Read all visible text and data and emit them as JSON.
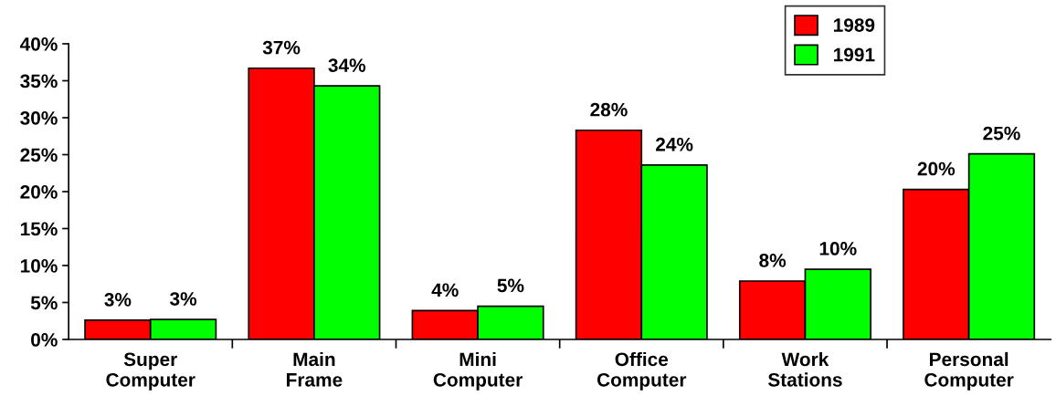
{
  "chart_data": {
    "type": "bar",
    "categories": [
      "Super\nComputer",
      "Main\nFrame",
      "Mini\nComputer",
      "Office\nComputer",
      "Work\nStations",
      "Personal\nComputer"
    ],
    "series": [
      {
        "name": "1989",
        "color": "#ff0000",
        "values": [
          2.6,
          36.7,
          3.9,
          28.3,
          7.9,
          20.3
        ],
        "value_labels": [
          "3%",
          "37%",
          "4%",
          "28%",
          "8%",
          "20%"
        ]
      },
      {
        "name": "1991",
        "color": "#00ff00",
        "values": [
          2.7,
          34.3,
          4.5,
          23.6,
          9.5,
          25.1
        ],
        "value_labels": [
          "3%",
          "34%",
          "5%",
          "24%",
          "10%",
          "25%"
        ]
      }
    ],
    "ylim": [
      0,
      40
    ],
    "yticks": [
      {
        "value": 0,
        "label": "0%"
      },
      {
        "value": 5,
        "label": "5%"
      },
      {
        "value": 10,
        "label": "10%"
      },
      {
        "value": 15,
        "label": "15%"
      },
      {
        "value": 20,
        "label": "20%"
      },
      {
        "value": 25,
        "label": "25%"
      },
      {
        "value": 30,
        "label": "30%"
      },
      {
        "value": 35,
        "label": "35%"
      },
      {
        "value": 40,
        "label": "40%"
      }
    ],
    "grid": false,
    "legend": "top right"
  }
}
